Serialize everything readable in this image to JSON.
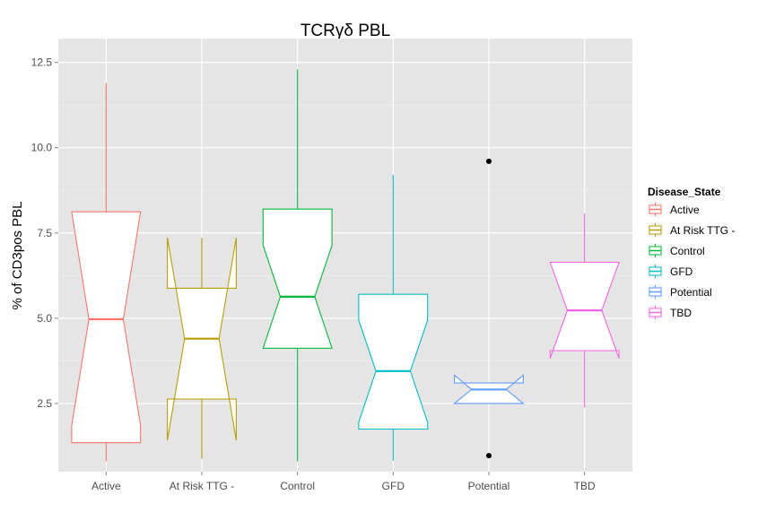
{
  "chart_data": {
    "type": "boxplot",
    "title": "TCRγδ PBL",
    "xlabel": "",
    "ylabel": "% of CD3pos PBL",
    "ylim": [
      0.5,
      13.2
    ],
    "yticks": [
      2.5,
      5.0,
      7.5,
      10.0,
      12.5
    ],
    "ytick_labels": [
      "2.5",
      "5.0",
      "7.5",
      "10.0",
      "12.5"
    ],
    "grid": true,
    "notched": true,
    "legend": {
      "title": "Disease_State",
      "position": "right"
    },
    "categories": [
      "Active",
      "At Risk TTG -",
      "Control",
      "GFD",
      "Potential",
      "TBD"
    ],
    "series": [
      {
        "name": "Active",
        "color": "#F8766D",
        "whisker_low": 0.8,
        "q1": 1.35,
        "median": 4.97,
        "q3": 8.12,
        "whisker_high": 11.9,
        "notch_low": 1.85,
        "notch_high": 8.12,
        "outliers": []
      },
      {
        "name": "At Risk TTG -",
        "color": "#B79F00",
        "whisker_low": 0.88,
        "q1": 2.63,
        "median": 4.4,
        "q3": 5.88,
        "whisker_high": 7.36,
        "notch_low": 1.42,
        "notch_high": 7.36,
        "outliers": []
      },
      {
        "name": "Control",
        "color": "#00BA38",
        "whisker_low": 0.8,
        "q1": 4.12,
        "median": 5.63,
        "q3": 8.2,
        "whisker_high": 12.3,
        "notch_low": 4.12,
        "notch_high": 7.14,
        "outliers": []
      },
      {
        "name": "GFD",
        "color": "#00BFC4",
        "whisker_low": 0.82,
        "q1": 1.75,
        "median": 3.45,
        "q3": 5.7,
        "whisker_high": 9.2,
        "notch_low": 1.95,
        "notch_high": 4.94,
        "outliers": []
      },
      {
        "name": "Potential",
        "color": "#619CFF",
        "whisker_low": 2.5,
        "q1": 2.5,
        "median": 2.91,
        "q3": 3.1,
        "whisker_high": 3.1,
        "notch_low": 2.5,
        "notch_high": 3.33,
        "outliers": [
          9.6,
          0.97
        ]
      },
      {
        "name": "TBD",
        "color": "#F564E3",
        "whisker_low": 2.38,
        "q1": 4.05,
        "median": 5.23,
        "q3": 6.64,
        "whisker_high": 8.07,
        "notch_low": 3.82,
        "notch_high": 6.64,
        "outliers": []
      }
    ]
  }
}
